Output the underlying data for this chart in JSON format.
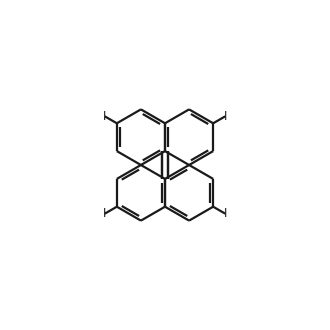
{
  "background_color": "#ffffff",
  "line_color": "#1a1a1a",
  "line_width": 1.6,
  "figure_size": [
    3.3,
    3.3
  ],
  "dpi": 100,
  "xlim": [
    -1.05,
    1.05
  ],
  "ylim": [
    -1.05,
    1.05
  ]
}
